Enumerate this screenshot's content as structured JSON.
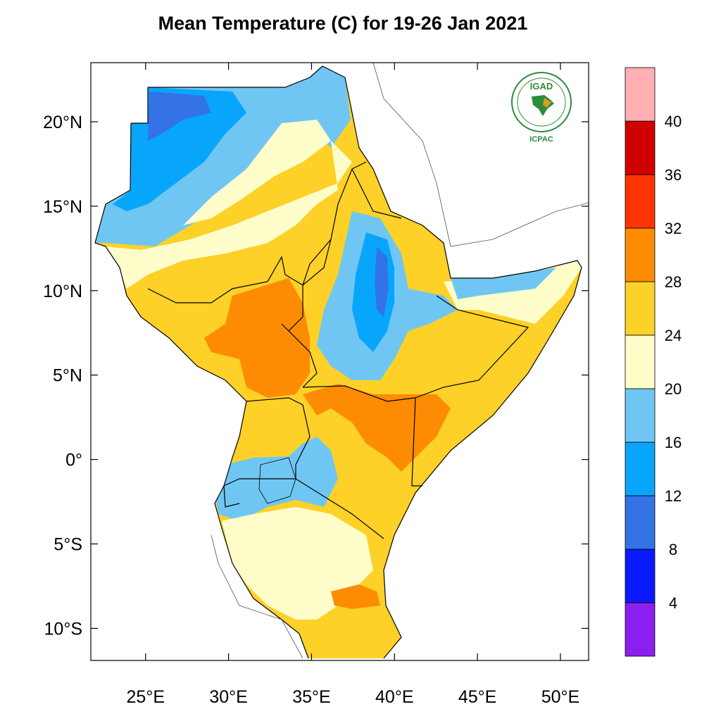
{
  "title": "Mean Temperature (C) for 19-26 Jan 2021",
  "logo": {
    "top_text": "IGAD",
    "bottom_text": "ICPAC",
    "colors": {
      "green": "#2e8b3a",
      "gold": "#d4a21a"
    }
  },
  "map": {
    "lon_range": [
      21.7,
      51.7
    ],
    "lat_range": [
      -11.9,
      23.5
    ],
    "x_ticks": [
      {
        "value": 25,
        "label": "25°E"
      },
      {
        "value": 30,
        "label": "30°E"
      },
      {
        "value": 35,
        "label": "35°E"
      },
      {
        "value": 40,
        "label": "40°E"
      },
      {
        "value": 45,
        "label": "45°E"
      },
      {
        "value": 50,
        "label": "50°E"
      }
    ],
    "y_ticks": [
      {
        "value": 20,
        "label": "20°N"
      },
      {
        "value": 15,
        "label": "15°N"
      },
      {
        "value": 10,
        "label": "10°N"
      },
      {
        "value": 5,
        "label": "5°N"
      },
      {
        "value": 0,
        "label": "0°"
      },
      {
        "value": -5,
        "label": "5°S"
      },
      {
        "value": -10,
        "label": "10°S"
      }
    ]
  },
  "colorbar": {
    "bins": [
      {
        "color": "#8a1fef"
      },
      {
        "color": "#0a1aff"
      },
      {
        "color": "#3373e6"
      },
      {
        "color": "#08a6fb"
      },
      {
        "color": "#70c6f2"
      },
      {
        "color": "#fffecb"
      },
      {
        "color": "#fdd127"
      },
      {
        "color": "#fd8c04"
      },
      {
        "color": "#fe3402"
      },
      {
        "color": "#d10000"
      },
      {
        "color": "#ffb0b3"
      }
    ],
    "labels": [
      "4",
      "8",
      "12",
      "16",
      "20",
      "24",
      "28",
      "32",
      "36",
      "40"
    ]
  }
}
